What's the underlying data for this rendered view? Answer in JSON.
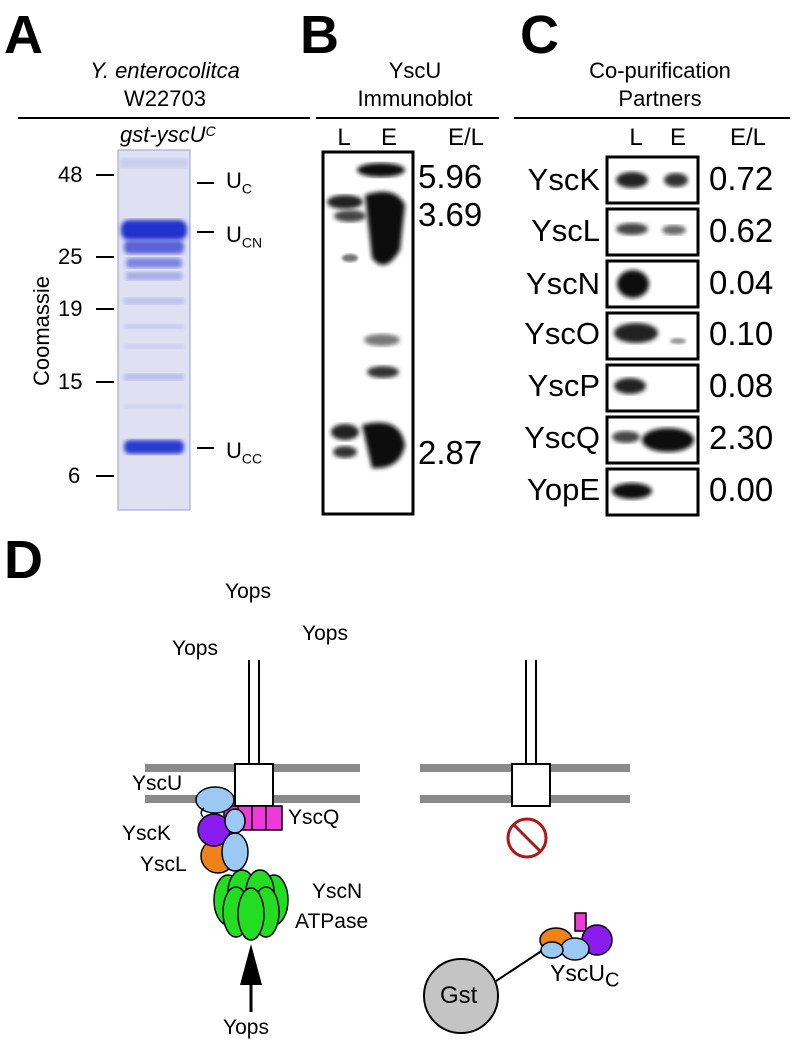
{
  "panels": {
    "a": {
      "label": "A",
      "organism": "Y. enterocolitca",
      "strain": "W22703",
      "construct": "gst-yscU",
      "construct_sub": "C",
      "axis_label": "Coomassie",
      "markers": [
        "48",
        "25",
        "19",
        "15",
        "6"
      ],
      "bands": [
        {
          "label": "U",
          "sub": "C"
        },
        {
          "label": "U",
          "sub": "CN"
        },
        {
          "label": "U",
          "sub": "CC"
        }
      ]
    },
    "b": {
      "label": "B",
      "title_line1": "YscU",
      "title_line2": "Immunoblot",
      "lanes": [
        "L",
        "E",
        "E/L"
      ],
      "ratios": [
        "5.96",
        "3.69",
        "2.87"
      ]
    },
    "c": {
      "label": "C",
      "title_line1": "Co-purification",
      "title_line2": "Partners",
      "lanes": [
        "L",
        "E",
        "E/L"
      ],
      "rows": [
        {
          "name": "YscK",
          "ratio": "0.72"
        },
        {
          "name": "YscL",
          "ratio": "0.62"
        },
        {
          "name": "YscN",
          "ratio": "0.04"
        },
        {
          "name": "YscO",
          "ratio": "0.10"
        },
        {
          "name": "YscP",
          "ratio": "0.08"
        },
        {
          "name": "YscQ",
          "ratio": "2.30"
        },
        {
          "name": "YopE",
          "ratio": "0.00"
        }
      ]
    },
    "d": {
      "label": "D",
      "yops_top": "Yops",
      "yops_left": "Yops",
      "yops_right": "Yops",
      "yscu": "YscU",
      "ysck": "YscK",
      "yscl": "YscL",
      "yscq": "YscQ",
      "yscn_line1": "YscN",
      "yscn_line2": "ATPase",
      "yops_bottom": "Yops",
      "gst": "Gst",
      "yscuc": "YscU",
      "yscuc_sub": "C"
    }
  },
  "colors": {
    "coomassie": "#2233cc",
    "purple": "#8a1cf0",
    "orange": "#f0821a",
    "lightblue": "#9cc8f4",
    "magenta": "#ee3ad8",
    "green": "#22dd22",
    "prohibit": "#b01818",
    "membrane": "#8a8a8a",
    "gst": "#c4c4c4"
  }
}
